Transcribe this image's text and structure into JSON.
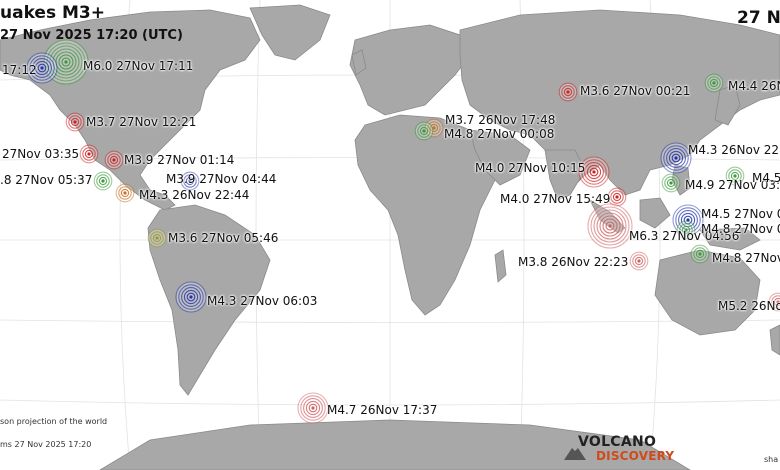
{
  "header": {
    "title": "uakes M3+",
    "subtitle": "27 Nov 2025 17:20 (UTC)",
    "date_right": "27 N"
  },
  "footer": {
    "projection_note": "son projection of the world",
    "timestamp_note": "ms 27 Nov 2025 17:20",
    "logo_top": "VOLCANO",
    "logo_bottom": "DISCOVERY",
    "corner_text": "sha"
  },
  "colors": {
    "ocean": "#ffffff",
    "land": "#a8a8a8",
    "coast": "#8a8a8a",
    "red": "#d02020",
    "green": "#3a9a3a",
    "blue": "#2233aa",
    "orange": "#c87020",
    "yellow": "#9a9a20",
    "pink": "#d06060"
  },
  "quakes": [
    {
      "id": "q1",
      "label": "M6.0 27Nov 17:11",
      "color": "green",
      "size": "large"
    },
    {
      "id": "q2",
      "label": "17:12",
      "color": "blue",
      "size": "medium"
    },
    {
      "id": "q3",
      "label": "M3.7 27Nov 12:21",
      "color": "red",
      "size": "small"
    },
    {
      "id": "q4",
      "label": "27Nov 03:35",
      "color": "red",
      "size": "small"
    },
    {
      "id": "q5",
      "label": "M3.9 27Nov 01:14",
      "color": "red",
      "size": "small"
    },
    {
      "id": "q6",
      "label": ".8 27Nov 05:37",
      "color": "green",
      "size": "small"
    },
    {
      "id": "q7",
      "label": "M3.9 27Nov 04:44",
      "color": "blue",
      "size": "small"
    },
    {
      "id": "q8",
      "label": "M4.3 26Nov 22:44",
      "color": "orange",
      "size": "small"
    },
    {
      "id": "q9",
      "label": "M3.6 27Nov 05:46",
      "color": "yellow",
      "size": "small"
    },
    {
      "id": "q10",
      "label": "M4.3 27Nov 06:03",
      "color": "blue",
      "size": "medium"
    },
    {
      "id": "q11",
      "label": "M4.7 26Nov 17:37",
      "color": "pink",
      "size": "medium"
    },
    {
      "id": "q12",
      "label": "M3.7 26Nov 17:48",
      "color": "orange",
      "size": "small"
    },
    {
      "id": "q13",
      "label": "M4.8 27Nov 00:08",
      "color": "green",
      "size": "small"
    },
    {
      "id": "q14",
      "label": "M3.6 27Nov 00:21",
      "color": "red",
      "size": "small"
    },
    {
      "id": "q15",
      "label": "M4.4 26N",
      "color": "green",
      "size": "small"
    },
    {
      "id": "q16",
      "label": "M4.0 27Nov 10:15",
      "color": "red",
      "size": "medium"
    },
    {
      "id": "q17",
      "label": "M4.0 27Nov 15:49",
      "color": "red",
      "size": "small"
    },
    {
      "id": "q18",
      "label": "M6.3 27Nov 04:56",
      "color": "pink",
      "size": "large"
    },
    {
      "id": "q19",
      "label": "M3.8 26Nov 22:23",
      "color": "pink",
      "size": "small"
    },
    {
      "id": "q20",
      "label": "M4.3 26Nov 22",
      "color": "blue",
      "size": "medium"
    },
    {
      "id": "q21",
      "label": "M4.9 27Nov 03:",
      "color": "green",
      "size": "small"
    },
    {
      "id": "q22",
      "label": "M4.5",
      "color": "green",
      "size": "small"
    },
    {
      "id": "q23",
      "label": "M4.5 27Nov 0",
      "color": "blue",
      "size": "medium"
    },
    {
      "id": "q24",
      "label": "M4.8 27Nov 0",
      "color": "green",
      "size": "small"
    },
    {
      "id": "q25",
      "label": "M4.8 27Nov",
      "color": "green",
      "size": "small"
    },
    {
      "id": "q26",
      "label": "M5.2 26Nov",
      "color": "pink",
      "size": "small"
    }
  ]
}
